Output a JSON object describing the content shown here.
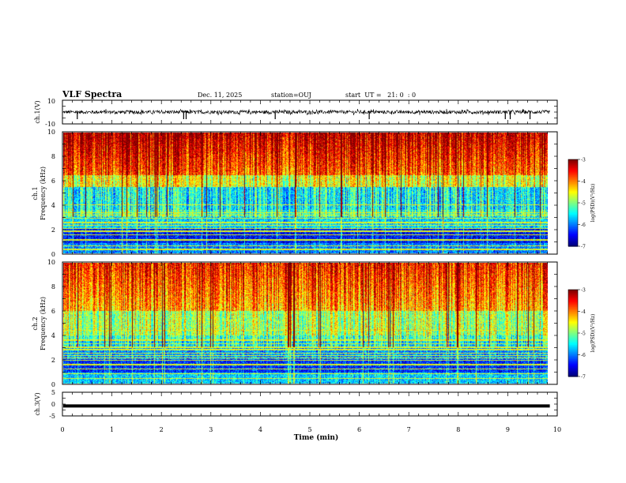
{
  "header": {
    "title": "VLF Spectra",
    "date": "Dec. 11, 2025",
    "station": "station=OUJ",
    "start_ut": "start  UT =   21: 0  : 0"
  },
  "chart_data": [
    {
      "type": "line",
      "id": "ch1-waveform",
      "ylabel": "ch.1(V)",
      "ylim": [
        -10,
        10
      ],
      "yticks": [
        "10",
        "-10"
      ],
      "xlim": [
        0,
        10
      ],
      "trace_color": "#000000",
      "baseline": 0,
      "noise_amplitude": 1.5,
      "spikes": [
        0.3,
        2.45,
        2.5,
        4.3,
        6.2,
        8.95,
        9.05,
        9.45
      ]
    },
    {
      "type": "heatmap",
      "id": "ch1-spectrogram",
      "ylabel": "ch.1",
      "ylabel2": "Frequency (kHz)",
      "ylim": [
        0,
        10
      ],
      "yticks": [
        "0",
        "2",
        "4",
        "6",
        "8",
        "10"
      ],
      "xlim": [
        0,
        10
      ],
      "data_end_min": 9.85,
      "colorbar": {
        "label": "log(PSD)(V²/Hz)",
        "range": [
          -7,
          -3
        ],
        "ticks": [
          "-3",
          "-4",
          "-5",
          "-6",
          "-7"
        ]
      }
    },
    {
      "type": "heatmap",
      "id": "ch2-spectrogram",
      "ylabel": "ch.2",
      "ylabel2": "Frequency (kHz)",
      "ylim": [
        0,
        10
      ],
      "yticks": [
        "0",
        "2",
        "4",
        "6",
        "8",
        "10"
      ],
      "xlim": [
        0,
        10
      ],
      "data_end_min": 9.85,
      "colorbar": {
        "label": "log(PSD)(V²/Hz)",
        "range": [
          -7,
          -3
        ],
        "ticks": [
          "-3",
          "-4",
          "-5",
          "-6",
          "-7"
        ]
      }
    },
    {
      "type": "line",
      "id": "ch3-waveform",
      "ylabel": "ch.3(V)",
      "ylim": [
        -5,
        5
      ],
      "yticks": [
        "5",
        "0",
        "-5"
      ],
      "xlim": [
        0,
        10
      ],
      "trace_color": "#000000",
      "constant_value": -0.8,
      "xlabel": "Time (min)",
      "xticks": [
        "0",
        "1",
        "2",
        "3",
        "4",
        "5",
        "6",
        "7",
        "8",
        "9",
        "10"
      ]
    }
  ]
}
